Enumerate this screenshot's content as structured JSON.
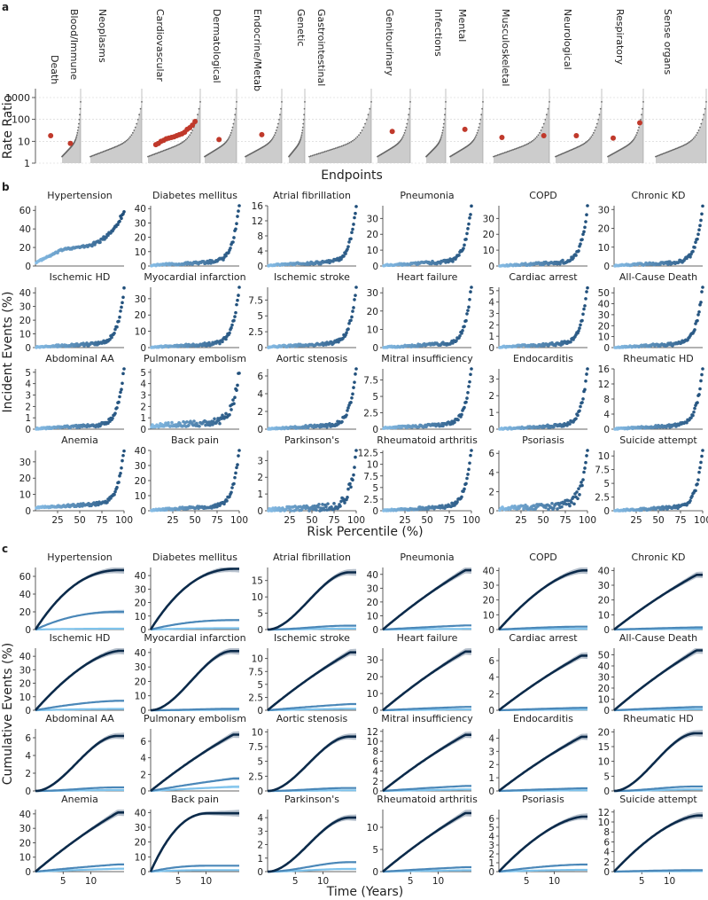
{
  "colors": {
    "risk_gradient_low": "#87bde6",
    "risk_gradient_high": "#1f4e7a",
    "top_curve": "#0b2a4a",
    "mid_curve": "#4a87b8",
    "low_curve": "#7fc3ec",
    "band": "#98a6b8",
    "fill_gray": "#cccccc",
    "point_gray": "#666666",
    "highlight": "#c0392b"
  },
  "panel_a": {
    "letter": "a",
    "ylabel": "Rate Ratio",
    "xlabel": "Endpoints",
    "yticks": [
      "1",
      "10",
      "100",
      "1000"
    ],
    "chart_data": {
      "type": "scatter",
      "y_scale": "log",
      "ylim": [
        1,
        1000
      ],
      "categories": [
        "Death",
        "Blood/Immune",
        "Neoplasms",
        "Cardiovascular",
        "Dermatological",
        "Endocrine/Metab",
        "Genetic",
        "Gastrointestinal",
        "Genitourinary",
        "Infections",
        "Mental",
        "Musculoskeletal",
        "Neurological",
        "Respiratory",
        "Sense organs"
      ],
      "highlighted_rate_ratios": [
        {
          "category": "Death",
          "values": [
            18
          ]
        },
        {
          "category": "Blood/Immune",
          "values": [
            8
          ]
        },
        {
          "category": "Cardiovascular",
          "values": [
            7,
            8,
            10,
            11,
            13,
            14,
            15,
            16,
            18,
            20,
            22,
            26,
            35,
            42,
            55,
            80
          ]
        },
        {
          "category": "Dermatological",
          "values": [
            12
          ]
        },
        {
          "category": "Endocrine/Metab",
          "values": [
            20
          ]
        },
        {
          "category": "Genitourinary",
          "values": [
            28
          ]
        },
        {
          "category": "Mental",
          "values": [
            35
          ]
        },
        {
          "category": "Musculoskeletal",
          "values": [
            15,
            18
          ]
        },
        {
          "category": "Neurological",
          "values": [
            18
          ]
        },
        {
          "category": "Respiratory",
          "values": [
            14,
            70
          ]
        }
      ]
    }
  },
  "panel_b": {
    "letter": "b",
    "ylabel": "Incident Events (%)",
    "xlabel": "Risk Percentile (%)",
    "xticks": [
      "25",
      "50",
      "75",
      "100"
    ],
    "chart_data": [
      {
        "type": "scatter",
        "title": "Hypertension",
        "yticks": [
          0,
          20,
          40,
          60
        ],
        "ymax": 65,
        "base": 4,
        "end": 60,
        "curve": "bump"
      },
      {
        "type": "scatter",
        "title": "Diabetes mellitus",
        "yticks": [
          0,
          10,
          20,
          30,
          40
        ],
        "ymax": 42,
        "base": 0.5,
        "end": 41,
        "curve": "exp"
      },
      {
        "type": "scatter",
        "title": "Atrial fibrillation",
        "yticks": [
          0,
          4,
          8,
          12,
          16
        ],
        "ymax": 16,
        "base": 0.2,
        "end": 15,
        "curve": "exp"
      },
      {
        "type": "scatter",
        "title": "Pneumonia",
        "yticks": [
          0,
          10,
          20,
          30
        ],
        "ymax": 38,
        "base": 0.5,
        "end": 35,
        "curve": "exp"
      },
      {
        "type": "scatter",
        "title": "COPD",
        "yticks": [
          0,
          10,
          20,
          30
        ],
        "ymax": 38,
        "base": 0.2,
        "end": 35,
        "curve": "exp"
      },
      {
        "type": "scatter",
        "title": "Chronic KD",
        "yticks": [
          0,
          10,
          20,
          30
        ],
        "ymax": 32,
        "base": 0.2,
        "end": 30,
        "curve": "exp"
      },
      {
        "type": "scatter",
        "title": "Ischemic HD",
        "yticks": [
          0,
          10,
          20,
          30,
          40
        ],
        "ymax": 44,
        "base": 0.5,
        "end": 40,
        "curve": "exp"
      },
      {
        "type": "scatter",
        "title": "Myocardial infarction",
        "yticks": [
          0,
          10,
          20,
          30
        ],
        "ymax": 37,
        "base": 0.2,
        "end": 35,
        "curve": "exp"
      },
      {
        "type": "scatter",
        "title": "Ischemic stroke",
        "yticks": [
          0,
          2.5,
          5.0,
          7.5
        ],
        "ymax": 9.5,
        "base": 0.1,
        "end": 9,
        "curve": "exp"
      },
      {
        "type": "scatter",
        "title": "Heart failure",
        "yticks": [
          0,
          10,
          20,
          30
        ],
        "ymax": 33,
        "base": 0.2,
        "end": 31,
        "curve": "exp"
      },
      {
        "type": "scatter",
        "title": "Cardiac arrest",
        "yticks": [
          0,
          1,
          2,
          3,
          4,
          5
        ],
        "ymax": 5.3,
        "base": 0.05,
        "end": 5,
        "curve": "exp"
      },
      {
        "type": "scatter",
        "title": "All-Cause Death",
        "yticks": [
          0,
          10,
          20,
          30,
          40,
          50
        ],
        "ymax": 55,
        "base": 0.3,
        "end": 52,
        "curve": "exp"
      },
      {
        "type": "scatter",
        "title": "Abdominal AA",
        "yticks": [
          0,
          1,
          2,
          3,
          4,
          5
        ],
        "ymax": 5.3,
        "base": 0.05,
        "end": 5,
        "curve": "exp"
      },
      {
        "type": "scatter",
        "title": "Pulmonary embolism",
        "yticks": [
          0,
          1,
          2,
          3,
          4,
          5
        ],
        "ymax": 5.3,
        "base": 0.3,
        "end": 4.8,
        "curve": "noisy"
      },
      {
        "type": "scatter",
        "title": "Aortic stenosis",
        "yticks": [
          0,
          2,
          4,
          6
        ],
        "ymax": 6.8,
        "base": 0.05,
        "end": 6.4,
        "curve": "exp"
      },
      {
        "type": "scatter",
        "title": "Mitral insufficiency",
        "yticks": [
          0,
          2.5,
          5.0,
          7.5
        ],
        "ymax": 9.2,
        "base": 0.2,
        "end": 8.6,
        "curve": "exp"
      },
      {
        "type": "scatter",
        "title": "Endocarditis",
        "yticks": [
          0,
          1,
          2,
          3
        ],
        "ymax": 3.6,
        "base": 0.02,
        "end": 3.4,
        "curve": "exp"
      },
      {
        "type": "scatter",
        "title": "Rheumatic HD",
        "yticks": [
          0,
          4,
          8,
          12,
          16
        ],
        "ymax": 16,
        "base": 0.1,
        "end": 15,
        "curve": "exp"
      },
      {
        "type": "scatter",
        "title": "Anemia",
        "yticks": [
          0,
          10,
          20,
          30
        ],
        "ymax": 37,
        "base": 2,
        "end": 35,
        "curve": "exp"
      },
      {
        "type": "scatter",
        "title": "Back pain",
        "yticks": [
          0,
          10,
          20,
          30,
          40
        ],
        "ymax": 40,
        "base": 0.5,
        "end": 38,
        "curve": "exp"
      },
      {
        "type": "scatter",
        "title": "Parkinson's",
        "yticks": [
          0,
          1,
          2,
          3
        ],
        "ymax": 3.6,
        "base": 0.05,
        "end": 3.3,
        "curve": "noisy"
      },
      {
        "type": "scatter",
        "title": "Rheumatoid arthritis",
        "yticks": [
          0,
          2.5,
          5.0,
          7.5,
          10.0,
          12.5
        ],
        "ymax": 13,
        "base": 0.1,
        "end": 12.5,
        "curve": "exp"
      },
      {
        "type": "scatter",
        "title": "Psoriasis",
        "yticks": [
          0,
          2,
          4,
          6
        ],
        "ymax": 6.3,
        "base": 0.2,
        "end": 6,
        "curve": "noisy"
      },
      {
        "type": "scatter",
        "title": "Suicide attempt",
        "yticks": [
          0,
          2.5,
          5.0,
          7.5,
          10.0
        ],
        "ymax": 11,
        "base": 0.02,
        "end": 10.5,
        "curve": "exp"
      }
    ]
  },
  "panel_c": {
    "letter": "c",
    "ylabel": "Cumulative Events (%)",
    "xlabel": "Time (Years)",
    "xticks": [
      "5",
      "10"
    ],
    "chart_data": [
      {
        "type": "line",
        "title": "Hypertension",
        "yticks": [
          0,
          20,
          40,
          60
        ],
        "ymax": 70,
        "top": 67,
        "mid": 20,
        "low": 1,
        "shape": "sat"
      },
      {
        "type": "line",
        "title": "Diabetes mellitus",
        "yticks": [
          0,
          10,
          20,
          30,
          40
        ],
        "ymax": 46,
        "top": 45,
        "mid": 7,
        "low": 1,
        "shape": "sat"
      },
      {
        "type": "line",
        "title": "Atrial fibrillation",
        "yticks": [
          0,
          5,
          10,
          15
        ],
        "ymax": 19,
        "top": 17.5,
        "mid": 1.2,
        "low": 0.3,
        "shape": "sig"
      },
      {
        "type": "line",
        "title": "Pneumonia",
        "yticks": [
          0,
          10,
          20,
          30,
          40
        ],
        "ymax": 45,
        "top": 43,
        "mid": 3,
        "low": 0.5,
        "shape": "lin"
      },
      {
        "type": "line",
        "title": "COPD",
        "yticks": [
          0,
          10,
          20,
          30,
          40
        ],
        "ymax": 42,
        "top": 40,
        "mid": 2,
        "low": 0.5,
        "shape": "sat2"
      },
      {
        "type": "line",
        "title": "Chronic KD",
        "yticks": [
          0,
          10,
          20,
          30,
          40
        ],
        "ymax": 42,
        "top": 37,
        "mid": 1.5,
        "low": 0.5,
        "shape": "lin"
      },
      {
        "type": "line",
        "title": "Ischemic HD",
        "yticks": [
          0,
          10,
          20,
          30,
          40
        ],
        "ymax": 46,
        "top": 44,
        "mid": 7,
        "low": 1,
        "shape": "sat2"
      },
      {
        "type": "line",
        "title": "Myocardial infarction",
        "yticks": [
          0,
          10,
          20,
          30,
          40
        ],
        "ymax": 43,
        "top": 41,
        "mid": 1,
        "low": 0.3,
        "shape": "sig"
      },
      {
        "type": "line",
        "title": "Ischemic stroke",
        "yticks": [
          0,
          2.5,
          5.0,
          7.5,
          10.0
        ],
        "ymax": 12,
        "top": 11.2,
        "mid": 1.2,
        "low": 0.3,
        "shape": "lin"
      },
      {
        "type": "line",
        "title": "Heart failure",
        "yticks": [
          0,
          10,
          20,
          30
        ],
        "ymax": 37,
        "top": 35,
        "mid": 2,
        "low": 0.5,
        "shape": "lin"
      },
      {
        "type": "line",
        "title": "Cardiac arrest",
        "yticks": [
          0,
          2,
          4,
          6
        ],
        "ymax": 7.5,
        "top": 6.6,
        "mid": 0.3,
        "low": 0.1,
        "shape": "lin"
      },
      {
        "type": "line",
        "title": "All-Cause Death",
        "yticks": [
          0,
          10,
          20,
          30,
          40,
          50
        ],
        "ymax": 56,
        "top": 54,
        "mid": 3,
        "low": 1,
        "shape": "lin"
      },
      {
        "type": "line",
        "title": "Abdominal AA",
        "yticks": [
          0,
          2,
          4,
          6
        ],
        "ymax": 7,
        "top": 6.2,
        "mid": 0.4,
        "low": 0.1,
        "shape": "sig"
      },
      {
        "type": "line",
        "title": "Pulmonary embolism",
        "yticks": [
          0,
          2,
          4,
          6
        ],
        "ymax": 7.5,
        "top": 6.8,
        "mid": 1.5,
        "low": 0.5,
        "shape": "lin"
      },
      {
        "type": "line",
        "title": "Aortic stenosis",
        "yticks": [
          0,
          2.5,
          5.0,
          7.5,
          10.0
        ],
        "ymax": 10.5,
        "top": 9.2,
        "mid": 0.5,
        "low": 0.1,
        "shape": "sig"
      },
      {
        "type": "line",
        "title": "Mitral insufficiency",
        "yticks": [
          0,
          2,
          4,
          6,
          8,
          10,
          12
        ],
        "ymax": 12.5,
        "top": 11.3,
        "mid": 1,
        "low": 0.3,
        "shape": "lin"
      },
      {
        "type": "line",
        "title": "Endocarditis",
        "yticks": [
          0,
          1,
          2,
          3,
          4
        ],
        "ymax": 4.7,
        "top": 4.1,
        "mid": 0.2,
        "low": 0.05,
        "shape": "lin"
      },
      {
        "type": "line",
        "title": "Rheumatic HD",
        "yticks": [
          0,
          5,
          10,
          15,
          20
        ],
        "ymax": 21,
        "top": 19.5,
        "mid": 1.5,
        "low": 0.5,
        "shape": "sig"
      },
      {
        "type": "line",
        "title": "Anemia",
        "yticks": [
          0,
          10,
          20,
          30,
          40
        ],
        "ymax": 43,
        "top": 41,
        "mid": 5,
        "low": 2,
        "shape": "lin"
      },
      {
        "type": "line",
        "title": "Back pain",
        "yticks": [
          0,
          10,
          20,
          30,
          40
        ],
        "ymax": 42,
        "top": 39.5,
        "mid": 4,
        "low": 1,
        "shape": "sat3"
      },
      {
        "type": "line",
        "title": "Parkinson's",
        "yticks": [
          0,
          1,
          2,
          3,
          4
        ],
        "ymax": 4.6,
        "top": 4,
        "mid": 0.7,
        "low": 0.2,
        "shape": "sig"
      },
      {
        "type": "line",
        "title": "Rheumatoid arthritis",
        "yticks": [
          0,
          5,
          10
        ],
        "ymax": 14,
        "top": 13.2,
        "mid": 1,
        "low": 0.3,
        "shape": "lin"
      },
      {
        "type": "line",
        "title": "Psoriasis",
        "yticks": [
          0,
          1,
          2,
          3,
          4,
          5,
          6
        ],
        "ymax": 7,
        "top": 6.2,
        "mid": 0.8,
        "low": 0.2,
        "shape": "sat2"
      },
      {
        "type": "line",
        "title": "Suicide attempt",
        "yticks": [
          0,
          2,
          4,
          6,
          8,
          10,
          12
        ],
        "ymax": 12.5,
        "top": 11.3,
        "mid": 0.3,
        "low": 0.1,
        "shape": "sat2"
      }
    ]
  }
}
